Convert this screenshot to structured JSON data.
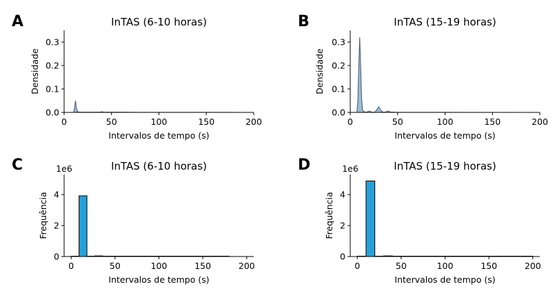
{
  "chart_data": [
    {
      "panel": "A",
      "type": "area",
      "title": "InTAS (6-10 horas)",
      "xlabel": "Intervalos de tempo (s)",
      "ylabel": "Densidade",
      "xlim": [
        0,
        200
      ],
      "ylim": [
        0,
        0.35
      ],
      "xticks": [
        "0",
        "50",
        "100",
        "150",
        "200"
      ],
      "yticks": [
        "0.0",
        "0.1",
        "0.2",
        "0.3"
      ],
      "xtick_values": [
        0,
        50,
        100,
        150,
        200
      ],
      "ytick_values": [
        0,
        0.1,
        0.2,
        0.3
      ],
      "x": [
        10,
        11,
        12,
        13,
        14,
        16,
        19,
        23,
        30,
        38,
        40,
        42,
        50,
        60,
        80,
        100,
        120,
        140,
        160,
        178,
        180
      ],
      "values": [
        0,
        0.02,
        0.05,
        0.02,
        0.004,
        0.001,
        0.001,
        0.001,
        0.001,
        0.001,
        0.003,
        0.001,
        0.001,
        0.001,
        0.0005,
        0.0005,
        0.0005,
        0.0005,
        0.0005,
        0.0005,
        0
      ],
      "fill_color": "#7aa6c7",
      "line_color": "#4a5a68"
    },
    {
      "panel": "B",
      "type": "area",
      "title": "InTAS (15-19 horas)",
      "xlabel": "Intervalos de tempo (s)",
      "ylabel": "Densidade",
      "xlim": [
        0,
        200
      ],
      "ylim": [
        0,
        0.35
      ],
      "xticks": [
        "0",
        "50",
        "100",
        "150",
        "200"
      ],
      "yticks": [
        "0.0",
        "0.1",
        "0.2",
        "0.3"
      ],
      "xtick_values": [
        0,
        50,
        100,
        150,
        200
      ],
      "ytick_values": [
        0,
        0.1,
        0.2,
        0.3
      ],
      "x": [
        7,
        8,
        9,
        10,
        11,
        12,
        13,
        15,
        17,
        19,
        20,
        21,
        23,
        26,
        28,
        30,
        32,
        34,
        37,
        39,
        40,
        41,
        43,
        46,
        50,
        60,
        80,
        200
      ],
      "values": [
        0,
        0.05,
        0.2,
        0.32,
        0.2,
        0.06,
        0.01,
        0.002,
        0.001,
        0.004,
        0.006,
        0.004,
        0.001,
        0.001,
        0.012,
        0.024,
        0.012,
        0.002,
        0.001,
        0.005,
        0.006,
        0.004,
        0.001,
        0.001,
        0.0005,
        0.0005,
        0.0005,
        0
      ],
      "fill_color": "#7aa6c7",
      "line_color": "#4a5a68"
    },
    {
      "panel": "C",
      "type": "bar",
      "title": "InTAS (6-10 horas)",
      "xlabel": "Intervalos de tempo (s)",
      "ylabel": "Frequência",
      "offset_label": "1e6",
      "xlim": [
        -8,
        208
      ],
      "ylim": [
        0,
        5.3
      ],
      "xticks": [
        "0",
        "50",
        "100",
        "150",
        "200"
      ],
      "yticks": [
        "0",
        "2",
        "4"
      ],
      "xtick_values": [
        0,
        50,
        100,
        150,
        200
      ],
      "ytick_values": [
        0,
        2,
        4
      ],
      "bin_edges": [
        0,
        9,
        18,
        27,
        36,
        45,
        54,
        63,
        72,
        81,
        90,
        99,
        108,
        117,
        126,
        135,
        144,
        153,
        162,
        171,
        180
      ],
      "values": [
        0.0,
        3.92,
        0.0,
        0.04,
        0.0,
        0.0,
        0.0,
        0.0,
        0.0,
        0.0,
        0.0,
        0.0,
        0.0,
        0.0,
        0.0,
        0.0,
        0.0,
        0.0,
        0.0,
        0.0
      ],
      "bar_color": "#2a9fd6"
    },
    {
      "panel": "D",
      "type": "bar",
      "title": "InTAS (15-19 horas)",
      "xlabel": "Intervalos de tempo (s)",
      "ylabel": "Frequência",
      "offset_label": "1e6",
      "xlim": [
        -8,
        208
      ],
      "ylim": [
        0,
        5.3
      ],
      "xticks": [
        "0",
        "50",
        "100",
        "150",
        "200"
      ],
      "yticks": [
        "0",
        "2",
        "4"
      ],
      "xtick_values": [
        0,
        50,
        100,
        150,
        200
      ],
      "ytick_values": [
        0,
        2,
        4
      ],
      "bin_edges": [
        0,
        10,
        20,
        30,
        40,
        50,
        60,
        70,
        80,
        90,
        100,
        110,
        120,
        130,
        140,
        150,
        160,
        170,
        180,
        190,
        200
      ],
      "values": [
        0.0,
        4.88,
        0.0,
        0.04,
        0.0,
        0.0,
        0.0,
        0.0,
        0.0,
        0.0,
        0.0,
        0.0,
        0.0,
        0.0,
        0.0,
        0.0,
        0.0,
        0.0,
        0.0,
        0.0
      ],
      "bar_color": "#2a9fd6"
    }
  ]
}
